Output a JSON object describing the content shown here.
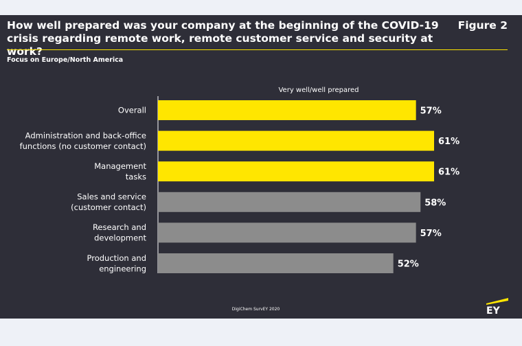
{
  "header": {
    "title": "How well prepared was your company at the beginning of the COVID-19 crisis regarding remote work, remote customer service and security at work?",
    "figure_label": "Figure 2",
    "subtitle": "Focus on Europe/North America"
  },
  "footer": {
    "source": "DigiChem SurvEY 2020",
    "logo_text": "EY"
  },
  "colors": {
    "background": "#2e2e38",
    "page": "#eef1f7",
    "highlight": "#ffe600",
    "muted": "#8c8c8c",
    "text": "#ffffff"
  },
  "chart_data": {
    "type": "bar",
    "orientation": "horizontal",
    "series_label": "Very well/well prepared",
    "categories": [
      [
        "Overall"
      ],
      [
        "Administration and back-office",
        "functions (no customer contact)"
      ],
      [
        "Management",
        "tasks"
      ],
      [
        "Sales and service",
        "(customer contact)"
      ],
      [
        "Research and",
        "development"
      ],
      [
        "Production and",
        "engineering"
      ]
    ],
    "values": [
      57,
      61,
      61,
      58,
      57,
      52
    ],
    "value_labels": [
      "57%",
      "61%",
      "61%",
      "58%",
      "57%",
      "52%"
    ],
    "highlighted": [
      true,
      true,
      true,
      false,
      false,
      false
    ],
    "xlim": [
      0,
      61
    ],
    "unit": "%"
  }
}
